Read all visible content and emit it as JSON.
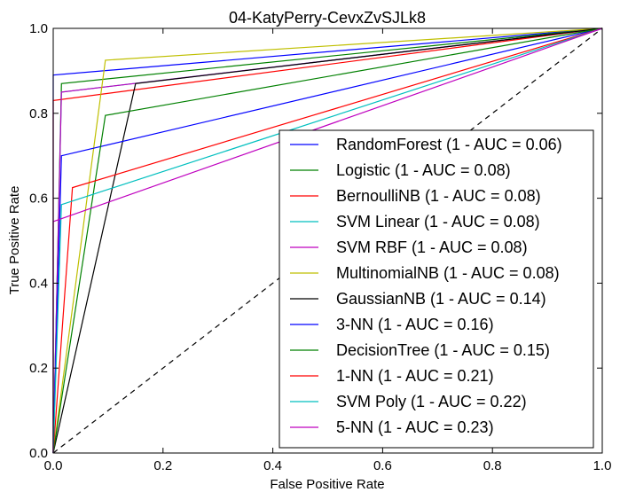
{
  "chart_data": {
    "type": "line",
    "title": "04-KatyPerry-CevxZvSJLk8",
    "xlabel": "False Positive Rate",
    "ylabel": "True Positive Rate",
    "xlim": [
      0.0,
      1.0
    ],
    "ylim": [
      0.0,
      1.0
    ],
    "xticks": [
      "0.0",
      "0.2",
      "0.4",
      "0.6",
      "0.8",
      "1.0"
    ],
    "yticks": [
      "0.0",
      "0.2",
      "0.4",
      "0.6",
      "0.8",
      "1.0"
    ],
    "grid": false,
    "legend_position": "lower-right",
    "series": [
      {
        "name": "RandomForest (1 - AUC = 0.06)",
        "color": "#0000ff",
        "x": [
          0,
          0,
          1
        ],
        "y": [
          0,
          0.89,
          1
        ]
      },
      {
        "name": "Logistic (1 - AUC = 0.08)",
        "color": "#008000",
        "x": [
          0,
          0.015,
          1
        ],
        "y": [
          0,
          0.87,
          1
        ]
      },
      {
        "name": "BernoulliNB (1 - AUC = 0.08)",
        "color": "#ff0000",
        "x": [
          0,
          0,
          1
        ],
        "y": [
          0,
          0.83,
          1
        ]
      },
      {
        "name": "SVM Linear (1 - AUC = 0.08)",
        "color": "#00bfbf",
        "x": [
          0,
          0.015,
          1
        ],
        "y": [
          0,
          0.85,
          1
        ]
      },
      {
        "name": "SVM RBF (1 - AUC = 0.08)",
        "color": "#bf00bf",
        "x": [
          0,
          0.015,
          1
        ],
        "y": [
          0,
          0.85,
          1
        ]
      },
      {
        "name": "MultinomialNB (1 - AUC = 0.08)",
        "color": "#bfbf00",
        "x": [
          0,
          0.095,
          1
        ],
        "y": [
          0,
          0.925,
          1
        ]
      },
      {
        "name": "GaussianNB (1 - AUC = 0.14)",
        "color": "#000000",
        "x": [
          0,
          0.15,
          1
        ],
        "y": [
          0,
          0.87,
          1
        ]
      },
      {
        "name": "3-NN (1 - AUC = 0.16)",
        "color": "#0000ff",
        "x": [
          0,
          0.015,
          1
        ],
        "y": [
          0,
          0.7,
          1
        ]
      },
      {
        "name": "DecisionTree (1 - AUC = 0.15)",
        "color": "#008000",
        "x": [
          0,
          0.095,
          1
        ],
        "y": [
          0,
          0.795,
          1
        ]
      },
      {
        "name": "1-NN (1 - AUC = 0.21)",
        "color": "#ff0000",
        "x": [
          0,
          0.035,
          1
        ],
        "y": [
          0,
          0.625,
          1
        ]
      },
      {
        "name": "SVM Poly (1 - AUC = 0.22)",
        "color": "#00bfbf",
        "x": [
          0,
          0.015,
          1
        ],
        "y": [
          0,
          0.585,
          1
        ]
      },
      {
        "name": "5-NN (1 - AUC = 0.23)",
        "color": "#bf00bf",
        "x": [
          0,
          0,
          1
        ],
        "y": [
          0,
          0.545,
          1
        ]
      }
    ],
    "reference_line": {
      "color": "#000000",
      "style": "dashed",
      "x": [
        0,
        1
      ],
      "y": [
        0,
        1
      ]
    }
  }
}
